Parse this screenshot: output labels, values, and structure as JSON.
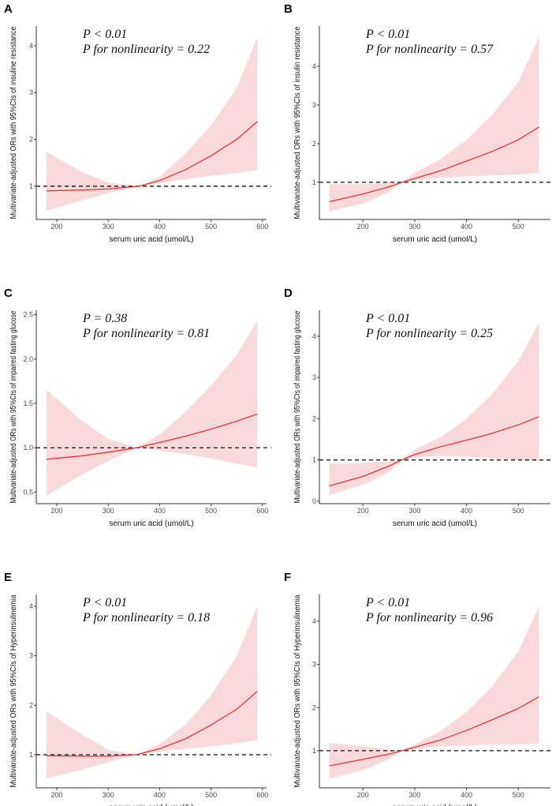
{
  "chart_data": [
    {
      "type": "line",
      "panel": "A",
      "annotation": [
        "P < 0.01",
        "P for nonlinearity =  0.22"
      ],
      "xlabel": "serum uric acid (umol/L)",
      "ylabel": "Multivariate-adjusted ORs with 95%CIs of insuline resistance",
      "xlim": [
        160,
        608
      ],
      "ylim": [
        0.29,
        4.42
      ],
      "xticks": [
        200,
        300,
        400,
        500,
        600
      ],
      "yticks": [
        1,
        2,
        3,
        4
      ],
      "ytick_decimals": 0,
      "reference_line": 1,
      "x": [
        180,
        250,
        300,
        360,
        400,
        450,
        500,
        550,
        590
      ],
      "or": [
        0.9,
        0.92,
        0.94,
        1.0,
        1.12,
        1.35,
        1.65,
        2.0,
        2.38
      ],
      "lower": [
        0.48,
        0.7,
        0.85,
        1.0,
        1.07,
        1.15,
        1.22,
        1.28,
        1.35
      ],
      "upper": [
        1.73,
        1.3,
        1.08,
        1.0,
        1.2,
        1.7,
        2.3,
        3.1,
        4.18
      ]
    },
    {
      "type": "line",
      "panel": "B",
      "annotation": [
        "P < 0.01",
        "P for nonlinearity =  0.57"
      ],
      "xlabel": "serum uric acid (umol/L)",
      "ylabel": "Multivariate-adjusted ORs with 95%CIs of insulin resistance",
      "xlim": [
        116,
        562
      ],
      "ylim": [
        0.04,
        5.04
      ],
      "xticks": [
        200,
        300,
        400,
        500
      ],
      "yticks": [
        1,
        2,
        3,
        4
      ],
      "ytick_decimals": 0,
      "reference_line": 1,
      "x": [
        135,
        200,
        250,
        275,
        300,
        350,
        400,
        450,
        500,
        540
      ],
      "or": [
        0.5,
        0.7,
        0.88,
        1.0,
        1.1,
        1.3,
        1.55,
        1.8,
        2.1,
        2.43
      ],
      "lower": [
        0.25,
        0.45,
        0.75,
        1.0,
        1.05,
        1.12,
        1.15,
        1.18,
        1.2,
        1.25
      ],
      "upper": [
        0.95,
        0.95,
        1.0,
        1.0,
        1.25,
        1.6,
        2.1,
        2.75,
        3.6,
        4.75
      ]
    },
    {
      "type": "line",
      "panel": "C",
      "annotation": [
        "P = 0.38",
        "P for nonlinearity =  0.81"
      ],
      "xlabel": "serum uric acid (umol/L)",
      "ylabel": "Multivariate-adjusted ORs with 95%CIs of impaired fasting glucose",
      "xlim": [
        160,
        608
      ],
      "ylim": [
        0.37,
        2.55
      ],
      "xticks": [
        200,
        300,
        400,
        500,
        600
      ],
      "yticks": [
        0.5,
        1.0,
        1.5,
        2.0,
        2.5
      ],
      "ytick_decimals": 1,
      "reference_line": 1,
      "x": [
        180,
        250,
        300,
        355,
        400,
        450,
        500,
        550,
        590
      ],
      "or": [
        0.87,
        0.91,
        0.95,
        1.0,
        1.06,
        1.13,
        1.21,
        1.3,
        1.38
      ],
      "lower": [
        0.46,
        0.7,
        0.85,
        1.0,
        0.97,
        0.93,
        0.88,
        0.82,
        0.78
      ],
      "upper": [
        1.65,
        1.3,
        1.1,
        1.0,
        1.15,
        1.4,
        1.7,
        2.05,
        2.43
      ]
    },
    {
      "type": "line",
      "panel": "D",
      "annotation": [
        "P < 0.01",
        "P for nonlinearity =  0.25"
      ],
      "xlabel": "serum uric acid (umol/L)",
      "ylabel": "Multivariate-adjusted ORs with 95%CIs of impaired fasting glucose",
      "xlim": [
        116,
        562
      ],
      "ylim": [
        -0.06,
        4.63
      ],
      "xticks": [
        200,
        300,
        400,
        500
      ],
      "yticks": [
        0,
        1,
        2,
        3,
        4
      ],
      "ytick_decimals": 0,
      "reference_line": 1,
      "x": [
        135,
        200,
        250,
        275,
        300,
        350,
        400,
        450,
        500,
        540
      ],
      "or": [
        0.37,
        0.6,
        0.85,
        1.0,
        1.13,
        1.32,
        1.48,
        1.65,
        1.85,
        2.05
      ],
      "lower": [
        0.15,
        0.4,
        0.7,
        1.0,
        1.05,
        1.1,
        1.08,
        1.05,
        1.0,
        0.97
      ],
      "upper": [
        0.92,
        0.93,
        0.97,
        1.0,
        1.25,
        1.55,
        2.0,
        2.6,
        3.4,
        4.33
      ]
    },
    {
      "type": "line",
      "panel": "E",
      "annotation": [
        "P < 0.01",
        "P for nonlinearity =  0.18"
      ],
      "xlabel": "serum uric acid (umol/L)",
      "ylabel": "Multivariate-adjusted ORs with 95%CIs of Hyperinsulinemia",
      "xlim": [
        160,
        608
      ],
      "ylim": [
        0.33,
        4.24
      ],
      "xticks": [
        200,
        300,
        400,
        500,
        600
      ],
      "yticks": [
        1,
        2,
        3,
        4
      ],
      "ytick_decimals": 0,
      "reference_line": 1,
      "x": [
        180,
        250,
        300,
        355,
        400,
        450,
        500,
        550,
        590
      ],
      "or": [
        0.98,
        0.97,
        0.97,
        1.0,
        1.12,
        1.32,
        1.6,
        1.92,
        2.28
      ],
      "lower": [
        0.52,
        0.7,
        0.85,
        1.0,
        1.07,
        1.12,
        1.17,
        1.23,
        1.3
      ],
      "upper": [
        1.87,
        1.4,
        1.1,
        1.0,
        1.22,
        1.6,
        2.2,
        3.0,
        4.0
      ]
    },
    {
      "type": "line",
      "panel": "F",
      "annotation": [
        "P < 0.01",
        "P for nonlinearity =  0.96"
      ],
      "xlabel": "serum uric acid (umol/L)",
      "ylabel": "Multivariate-adjusted ORs with 95%CIs of Hyperinsulinemia",
      "xlim": [
        116,
        562
      ],
      "ylim": [
        0.14,
        4.62
      ],
      "xticks": [
        200,
        300,
        400,
        500
      ],
      "yticks": [
        1,
        2,
        3,
        4
      ],
      "ytick_decimals": 0,
      "reference_line": 1,
      "x": [
        135,
        200,
        250,
        275,
        300,
        350,
        400,
        450,
        500,
        540
      ],
      "or": [
        0.65,
        0.8,
        0.92,
        1.0,
        1.08,
        1.25,
        1.47,
        1.72,
        1.98,
        2.25
      ],
      "lower": [
        0.35,
        0.55,
        0.8,
        1.0,
        1.04,
        1.1,
        1.12,
        1.14,
        1.15,
        1.16
      ],
      "upper": [
        1.18,
        1.1,
        1.03,
        1.0,
        1.15,
        1.45,
        1.9,
        2.5,
        3.3,
        4.35
      ]
    }
  ],
  "colors": {
    "line": "#e8332d",
    "band": "#f9d9dc",
    "reference": "#222222",
    "axis": "#333333"
  }
}
